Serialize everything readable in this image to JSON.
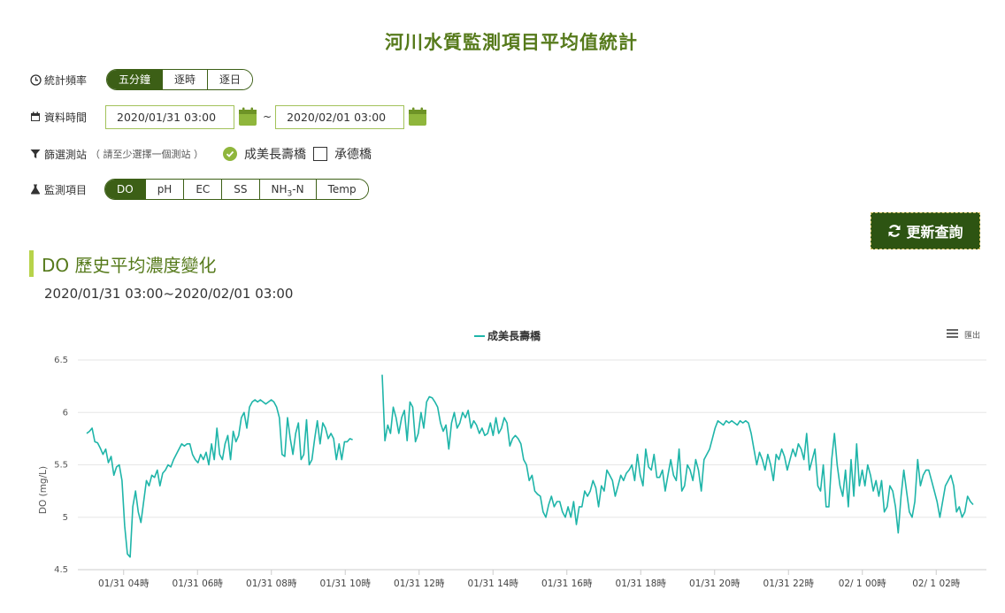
{
  "page": {
    "title": "河川水質監測項目平均值統計"
  },
  "filters": {
    "frequency": {
      "label": "統計頻率",
      "options": [
        "五分鐘",
        "逐時",
        "逐日"
      ],
      "active": 0
    },
    "date": {
      "label": "資料時間",
      "start": "2020/01/31 03:00",
      "tilde": "~",
      "end": "2020/02/01 03:00"
    },
    "stations": {
      "label": "篩選測站",
      "hint": "（ 請至少選擇一個測站 ）",
      "items": [
        {
          "name": "成美長壽橋",
          "checked": true
        },
        {
          "name": "承德橋",
          "checked": false
        }
      ]
    },
    "items": {
      "label": "監測項目",
      "options": [
        "DO",
        "pH",
        "EC",
        "SS",
        "NH3-N",
        "Temp"
      ],
      "active": 0
    },
    "refresh_label": "更新查詢"
  },
  "section": {
    "title": "DO 歷史平均濃度變化",
    "range": "2020/01/31 03:00~2020/02/01 03:00"
  },
  "chart_menu_label": "匯出",
  "colors": {
    "brand_green": "#3c5f16",
    "accent_lime": "#b7d34a",
    "series": "#1fb5a9",
    "title_green": "#567a1b"
  },
  "chart_data": {
    "type": "line",
    "title": "",
    "ylabel": "DO (mg/L)",
    "ylim": [
      4.5,
      6.5
    ],
    "yticks": [
      4.5,
      5,
      5.5,
      6,
      6.5
    ],
    "legend_position": "top-center",
    "x_start": "2020/01/31 03:00",
    "x_end": "2020/02/01 03:00",
    "x_ticks": [
      "01/31 04時",
      "01/31 06時",
      "01/31 08時",
      "01/31 10時",
      "01/31 12時",
      "01/31 14時",
      "01/31 16時",
      "01/31 18時",
      "01/31 20時",
      "01/31 22時",
      "02/ 1 00時",
      "02/ 1 02時"
    ],
    "series": [
      {
        "name": "成美長壽橋",
        "segments": [
          [
            5.8,
            5.82,
            5.85,
            5.72,
            5.71,
            5.66,
            5.6,
            5.65,
            5.52,
            5.58,
            5.4,
            5.48,
            5.5,
            5.35,
            4.92,
            4.65,
            4.62,
            5.1,
            5.25,
            5.05,
            4.95,
            5.15,
            5.35,
            5.3,
            5.4,
            5.38,
            5.45,
            5.3,
            5.42,
            5.45,
            5.5,
            5.48,
            5.55,
            5.6,
            5.65,
            5.7,
            5.68,
            5.7,
            5.7,
            5.6,
            5.55,
            5.52,
            5.6,
            5.55,
            5.62,
            5.5,
            5.7,
            5.55,
            5.85,
            5.6,
            5.55,
            5.7,
            5.78,
            5.55,
            5.82,
            5.72,
            5.78,
            5.95,
            6.0,
            5.85,
            6.05,
            6.1,
            6.12,
            6.1,
            6.12,
            6.1,
            6.08,
            6.1,
            6.12,
            6.1,
            6.05,
            5.95,
            5.6,
            5.58,
            5.95,
            5.75,
            5.6,
            5.8,
            5.9,
            5.55,
            5.6,
            5.93,
            5.5,
            5.55,
            5.75,
            5.92,
            5.7,
            5.9,
            5.85,
            5.75,
            5.8,
            5.75,
            5.55,
            5.7,
            5.55,
            5.72,
            5.72,
            5.75,
            5.74
          ],
          [
            6.36,
            5.73,
            5.88,
            5.8,
            6.05,
            5.95,
            5.8,
            5.95,
            6.02,
            5.73,
            6.1,
            6.05,
            5.72,
            5.8,
            6.0,
            5.85,
            6.1,
            6.15,
            6.14,
            6.1,
            6.05,
            5.9,
            5.82,
            5.88,
            5.65,
            5.9,
            6.0,
            5.85,
            5.9,
            6.0,
            5.95,
            6.02,
            5.85,
            5.92,
            5.88,
            5.8,
            5.85,
            5.78,
            5.8,
            5.9,
            5.78,
            5.95,
            5.8,
            5.85,
            5.95,
            5.9,
            5.68,
            5.75,
            5.78,
            5.75,
            5.7,
            5.55,
            5.5,
            5.35,
            5.4,
            5.25,
            5.22,
            5.2,
            5.05,
            5.0,
            5.12,
            5.2,
            5.1,
            5.15,
            5.15,
            5.05,
            5.0,
            5.1,
            5.0,
            5.15,
            4.93,
            5.1,
            5.1,
            5.25,
            5.2,
            5.25,
            5.35,
            5.28,
            5.1,
            5.3,
            5.25,
            5.45,
            5.4,
            5.35,
            5.2,
            5.3,
            5.4,
            5.35,
            5.42,
            5.45,
            5.5,
            5.35,
            5.6,
            5.4,
            5.3,
            5.65,
            5.48,
            5.45,
            5.6,
            5.38,
            5.38,
            5.45,
            5.25,
            5.4,
            5.55,
            5.4,
            5.35,
            5.65,
            5.25,
            5.3,
            5.5,
            5.45,
            5.35,
            5.55,
            5.45,
            5.25,
            5.55,
            5.6,
            5.65,
            5.75,
            5.85,
            5.92,
            5.9,
            5.88,
            5.92,
            5.9,
            5.92,
            5.9,
            5.88,
            5.92,
            5.9,
            5.92,
            5.9,
            5.8,
            5.65,
            5.5,
            5.62,
            5.55,
            5.45,
            5.6,
            5.5,
            5.35,
            5.6,
            5.55,
            5.65,
            5.58,
            5.45,
            5.55,
            5.65,
            5.58,
            5.7,
            5.65,
            5.55,
            5.8,
            5.45,
            5.55,
            5.65,
            5.3,
            5.25,
            5.5,
            5.1,
            5.1,
            5.55,
            5.8,
            5.5,
            5.3,
            5.2,
            5.45,
            5.1,
            5.55,
            5.2,
            5.7,
            5.3,
            5.45,
            5.3,
            5.5,
            5.4,
            5.25,
            5.35,
            5.2,
            5.35,
            5.05,
            5.1,
            5.3,
            5.25,
            5.1,
            4.85,
            5.2,
            5.45,
            5.25,
            5.05,
            5.0,
            5.15,
            5.55,
            5.3,
            5.4,
            5.45,
            5.45,
            5.35,
            5.25,
            5.15,
            5.0,
            5.15,
            5.3,
            5.35,
            5.4,
            5.3,
            5.05,
            5.1,
            5.0,
            5.05,
            5.2,
            5.15,
            5.12
          ]
        ]
      }
    ]
  }
}
